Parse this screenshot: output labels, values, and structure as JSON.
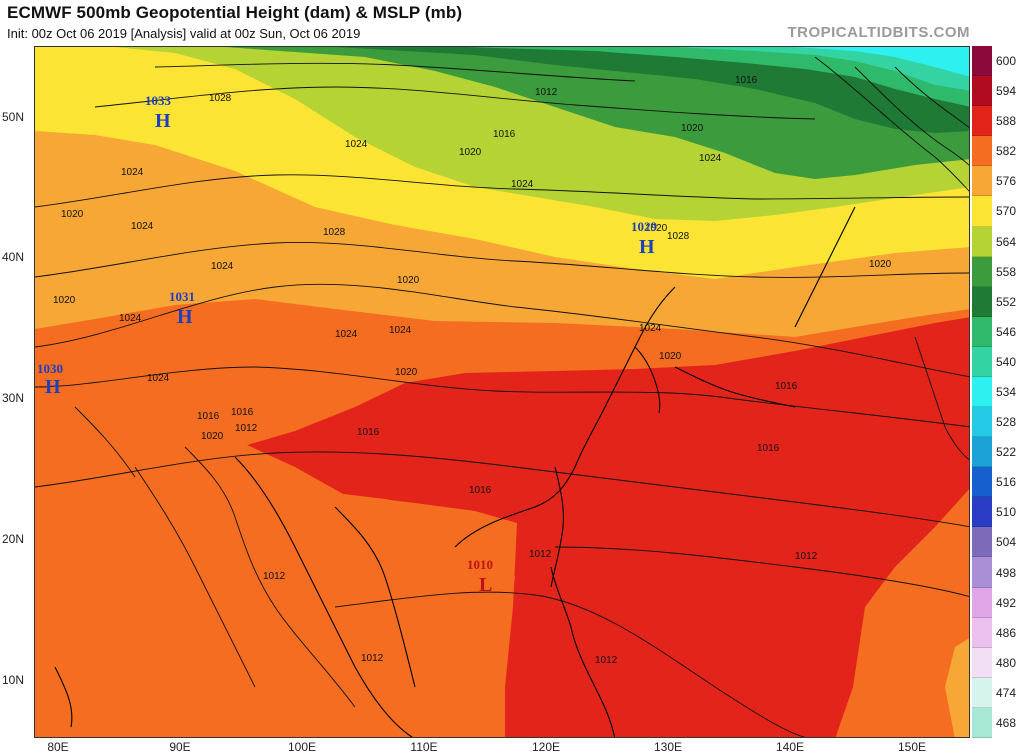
{
  "header": {
    "title": "ECMWF 500mb Geopotential Height (dam) & MSLP (mb)",
    "subtitle": "Init: 00z Oct 06 2019   [Analysis]   valid at 00z Sun, Oct 06 2019",
    "brand": "TROPICALTIDBITS.COM"
  },
  "axes": {
    "lat_labels": [
      "50N",
      "40N",
      "30N",
      "20N",
      "10N"
    ],
    "lon_labels": [
      "80E",
      "90E",
      "100E",
      "110E",
      "120E",
      "130E",
      "140E",
      "150E"
    ]
  },
  "colorbar": {
    "levels": [
      "600",
      "594",
      "588",
      "582",
      "576",
      "570",
      "564",
      "558",
      "552",
      "546",
      "540",
      "534",
      "528",
      "522",
      "516",
      "510",
      "504",
      "498",
      "492",
      "486",
      "480",
      "474",
      "468"
    ],
    "colors": [
      "#8b0a3a",
      "#b00b1e",
      "#e3241b",
      "#f46d21",
      "#f7a736",
      "#fbe434",
      "#b5d335",
      "#3c9b3c",
      "#1e7a34",
      "#2fb96a",
      "#33d3a3",
      "#2ff0f0",
      "#24c9e6",
      "#1da2d8",
      "#1560cc",
      "#2b3cc4",
      "#7b6bb8",
      "#a98fd6",
      "#e0a6e8",
      "#ecc0ee",
      "#f3dff3",
      "#d6f4ec",
      "#a6e8d4"
    ]
  },
  "pressure_centers": [
    {
      "type": "H",
      "value": "1033"
    },
    {
      "type": "H",
      "value": "1031"
    },
    {
      "type": "H",
      "value": "1030"
    },
    {
      "type": "H",
      "value": "1029"
    },
    {
      "type": "L",
      "value": "1010"
    }
  ],
  "isobar_labels": [
    "1028",
    "1024",
    "1024",
    "1024",
    "1020",
    "1024",
    "1020",
    "1016",
    "1012",
    "1016",
    "1020",
    "1024",
    "1028",
    "1020",
    "1024",
    "1016",
    "1020",
    "1020",
    "1024",
    "1024",
    "1028",
    "1024",
    "1024",
    "1020",
    "1020",
    "1024",
    "1020",
    "1016",
    "1012",
    "1020",
    "1016",
    "1016",
    "1016",
    "1016",
    "1012",
    "1012",
    "1012",
    "1012",
    "1012"
  ],
  "chart_data": {
    "type": "heatmap",
    "field": "500mb geopotential height (dam) shaded with MSLP (mb) contours",
    "lon_range": [
      78,
      155
    ],
    "lat_range": [
      6,
      55
    ],
    "contour_interval_mb": 4,
    "shading_interval_dam": 6
  }
}
